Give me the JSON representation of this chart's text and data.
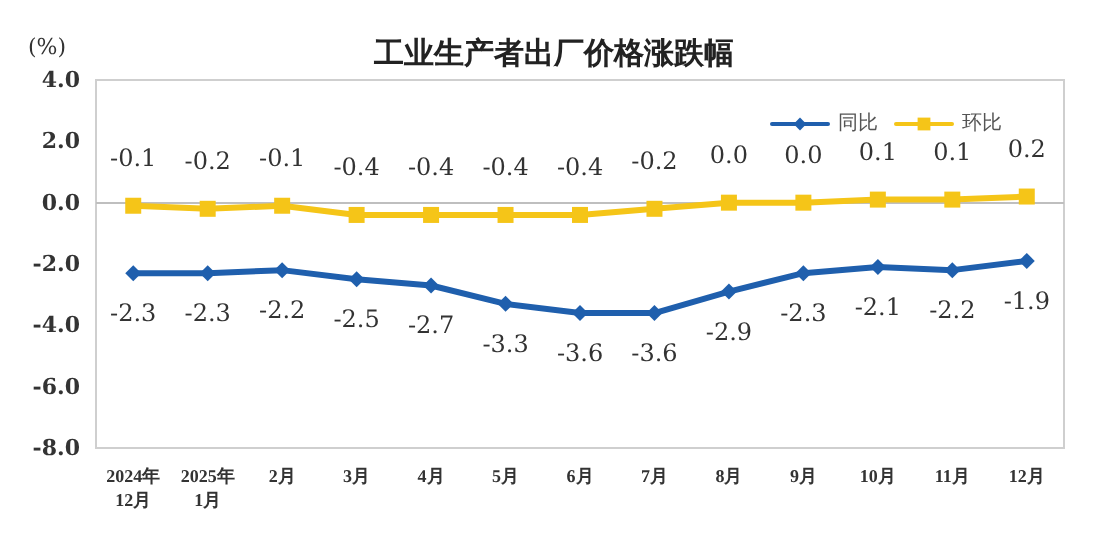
{
  "chart_data": {
    "type": "line",
    "title": "工业生产者出厂价格涨跌幅",
    "ylabel": "(%)",
    "categories": [
      "2024年\n12月",
      "2025年\n1月",
      "2月",
      "3月",
      "4月",
      "5月",
      "6月",
      "7月",
      "8月",
      "9月",
      "10月",
      "11月",
      "12月"
    ],
    "series": [
      {
        "name": "同比",
        "color": "#1f5fad",
        "marker": "diamond",
        "values": [
          -2.3,
          -2.3,
          -2.2,
          -2.5,
          -2.7,
          -3.3,
          -3.6,
          -3.6,
          -2.9,
          -2.3,
          -2.1,
          -2.2,
          -1.9
        ],
        "value_labels": [
          "-2.3",
          "-2.3",
          "-2.2",
          "-2.5",
          "-2.7",
          "-3.3",
          "-3.6",
          "-3.6",
          "-2.9",
          "-2.3",
          "-2.1",
          "-2.2",
          "-1.9"
        ]
      },
      {
        "name": "环比",
        "color": "#f5c518",
        "marker": "square",
        "values": [
          -0.1,
          -0.2,
          -0.1,
          -0.4,
          -0.4,
          -0.4,
          -0.4,
          -0.2,
          0.0,
          0.0,
          0.1,
          0.1,
          0.2
        ],
        "value_labels": [
          "-0.1",
          "-0.2",
          "-0.1",
          "-0.4",
          "-0.4",
          "-0.4",
          "-0.4",
          "-0.2",
          "0.0",
          "0.0",
          "0.1",
          "0.1",
          "0.2"
        ]
      }
    ],
    "ylim": [
      -8,
      4
    ],
    "yticks": [
      {
        "value": -8,
        "label": "-8.0"
      },
      {
        "value": -6,
        "label": "-6.0"
      },
      {
        "value": -4,
        "label": "-4.0"
      },
      {
        "value": -2,
        "label": "-2.0"
      },
      {
        "value": 0,
        "label": "0.0"
      },
      {
        "value": 2,
        "label": "2.0"
      },
      {
        "value": 4,
        "label": "4.0"
      }
    ],
    "ref_lines": [
      {
        "axis": "y",
        "value": 0,
        "color": "#bfbfbf"
      }
    ],
    "grid": false,
    "legend": "top right",
    "line_style": "solid"
  }
}
